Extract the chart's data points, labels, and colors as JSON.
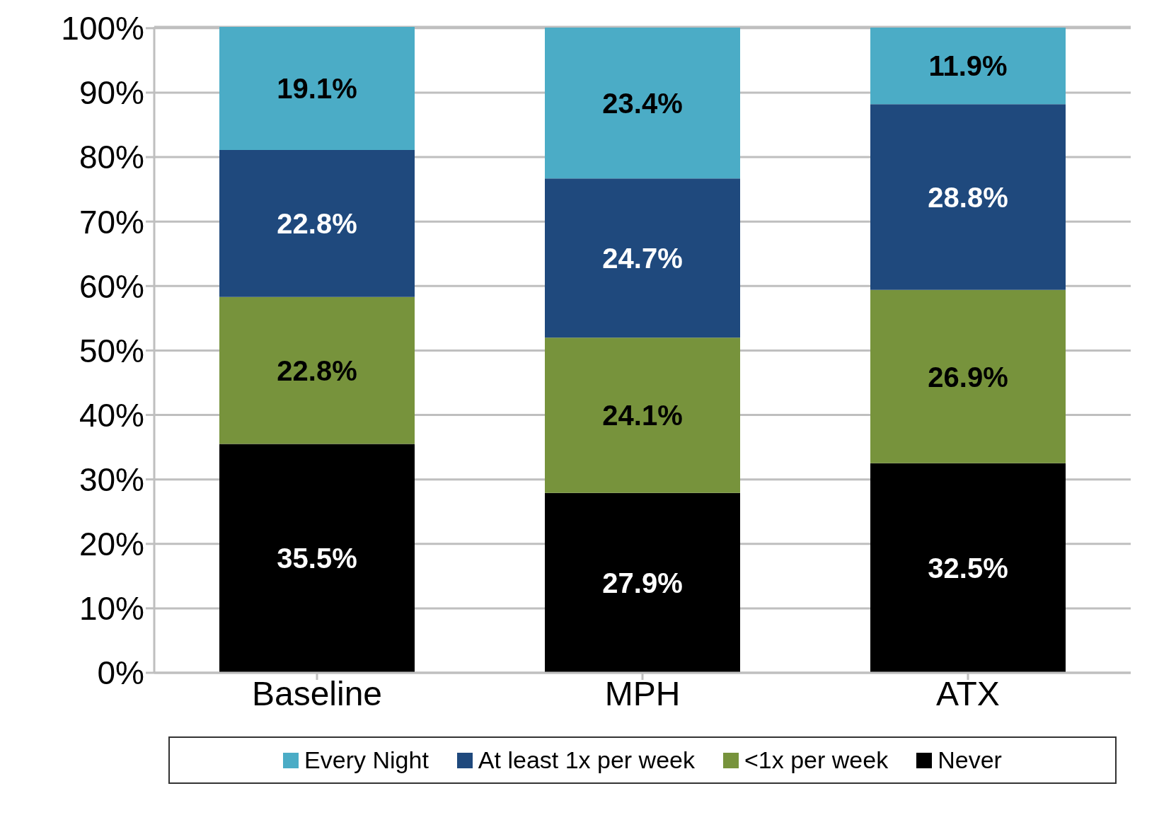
{
  "chart_data": {
    "type": "bar",
    "stacked": true,
    "categories": [
      "Baseline",
      "MPH",
      "ATX"
    ],
    "series": [
      {
        "name": "Never",
        "color": "#000000",
        "values": [
          35.5,
          27.9,
          32.5
        ],
        "value_labels": [
          "35.5%",
          "27.9%",
          "32.5%"
        ]
      },
      {
        "name": "<1x per week",
        "color": "#77933c",
        "values": [
          22.8,
          24.1,
          26.9
        ],
        "value_labels": [
          "22.8%",
          "24.1%",
          "26.9%"
        ]
      },
      {
        "name": "At least 1x per week",
        "color": "#1f497d",
        "values": [
          22.8,
          24.7,
          28.8
        ],
        "value_labels": [
          "22.8%",
          "24.7%",
          "28.8%"
        ]
      },
      {
        "name": "Every Night",
        "color": "#4bacc6",
        "values": [
          19.1,
          23.4,
          11.9
        ],
        "value_labels": [
          "19.1%",
          "23.4%",
          "11.9%"
        ]
      }
    ],
    "ylim": [
      0,
      100.2
    ],
    "yticks": [
      {
        "value": 0,
        "label": "0%"
      },
      {
        "value": 10,
        "label": "10%"
      },
      {
        "value": 20,
        "label": "20%"
      },
      {
        "value": 30,
        "label": "30%"
      },
      {
        "value": 40,
        "label": "40%"
      },
      {
        "value": 50,
        "label": "50%"
      },
      {
        "value": 60,
        "label": "60%"
      },
      {
        "value": 70,
        "label": "70%"
      },
      {
        "value": 80,
        "label": "80%"
      },
      {
        "value": 90,
        "label": "90%"
      },
      {
        "value": 100,
        "label": "100%"
      }
    ],
    "grid": "y",
    "legend": "bottom"
  }
}
